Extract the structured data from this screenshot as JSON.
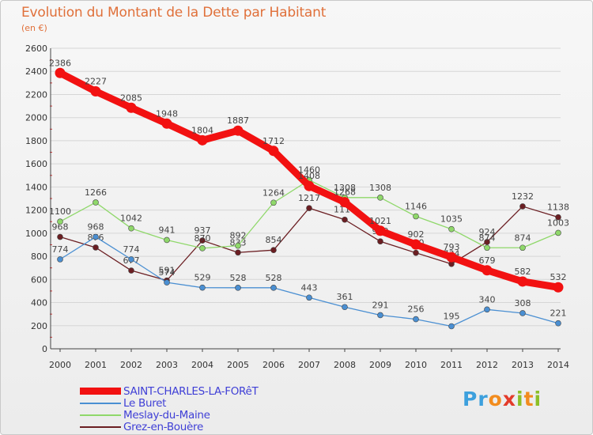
{
  "header": {
    "title": "Evolution du Montant de la Dette par Habitant",
    "subtitle": "(en €)"
  },
  "logo": {
    "text": "Proxiti",
    "letters": [
      {
        "ch": "P",
        "color": "#3da0dd"
      },
      {
        "ch": "r",
        "color": "#3da0dd"
      },
      {
        "ch": "o",
        "color": "#f28c1e"
      },
      {
        "ch": "x",
        "color": "#e33b2a"
      },
      {
        "ch": "i",
        "color": "#8cbf26"
      },
      {
        "ch": "t",
        "color": "#f28c1e"
      },
      {
        "ch": "i",
        "color": "#8cbf26"
      }
    ]
  },
  "chart_data": {
    "type": "line",
    "title": "Evolution du Montant de la Dette par Habitant",
    "subtitle": "(en €)",
    "x": [
      "2000",
      "2001",
      "2002",
      "2003",
      "2004",
      "2005",
      "2006",
      "2007",
      "2008",
      "2009",
      "2010",
      "2011",
      "2012",
      "2013",
      "2014"
    ],
    "ylim": [
      0,
      2600
    ],
    "yticks": [
      0,
      200,
      400,
      600,
      800,
      1000,
      1200,
      1400,
      1600,
      1800,
      2000,
      2200,
      2400,
      2600
    ],
    "grid": "horizontal",
    "legend_position": "bottom-left",
    "series": [
      {
        "name": "Grez-en-Bouère",
        "color": "#6b1e22",
        "values": [
          968,
          876,
          677,
          591,
          937,
          833,
          854,
          1217,
          1117,
          929,
          830,
          734,
          924,
          1232,
          1138
        ]
      },
      {
        "name": "Meslay-du-Maine",
        "color": "#8fd86a",
        "values": [
          1100,
          1266,
          1042,
          941,
          870,
          892,
          1264,
          1460,
          1308,
          1308,
          1146,
          1035,
          874,
          874,
          1003
        ]
      },
      {
        "name": "Le Buret",
        "color": "#4a8fd2",
        "values": [
          774,
          968,
          774,
          574,
          529,
          528,
          528,
          443,
          361,
          291,
          256,
          195,
          340,
          308,
          221
        ]
      },
      {
        "name": "SAINT-CHARLES-LA-FORêT",
        "color": "#f21111",
        "values": [
          2386,
          2227,
          2085,
          1948,
          1804,
          1887,
          1712,
          1408,
          1268,
          1021,
          902,
          793,
          679,
          582,
          532
        ]
      }
    ]
  }
}
